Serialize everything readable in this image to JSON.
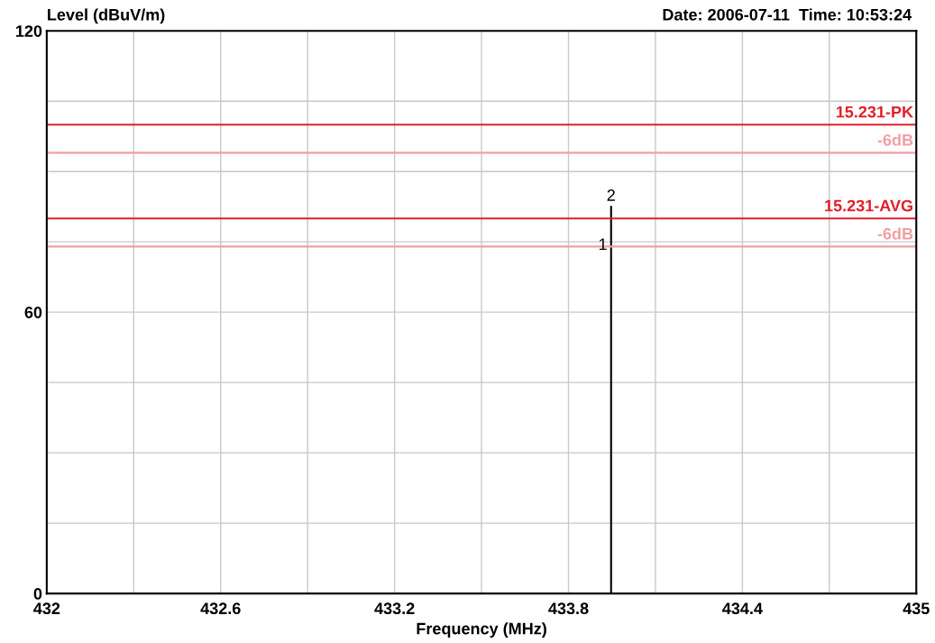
{
  "chart_data": {
    "type": "line",
    "ylabel": "Level (dBuV/m)",
    "xlabel": "Frequency (MHz)",
    "annotations": [
      "Date: 2006-07-11  Time: 10:53:24",
      {
        "text": "2",
        "x": 433.947,
        "y": 82.5
      },
      {
        "text": "1",
        "x": 433.947,
        "y": 74.2
      }
    ],
    "series": [
      {
        "color": "#000000",
        "x": [
          433.947,
          433.947
        ],
        "values": [
          0,
          82.5
        ]
      }
    ],
    "xlim": [
      432,
      435
    ],
    "xticks": [
      432,
      {
        "value": 432.3,
        "label": null
      },
      432.6,
      {
        "value": 432.9,
        "label": null
      },
      433.2,
      {
        "value": 433.5,
        "label": null
      },
      433.8,
      {
        "value": 434.1,
        "label": null
      },
      434.4,
      {
        "value": 434.7,
        "label": null
      },
      435
    ],
    "ylim": [
      0,
      120
    ],
    "yticks": [
      0,
      {
        "value": 15,
        "label": null
      },
      {
        "value": 30,
        "label": null
      },
      {
        "value": 45,
        "label": null
      },
      60,
      {
        "value": 75,
        "label": null
      },
      {
        "value": 90,
        "label": null
      },
      {
        "value": 105,
        "label": null
      },
      120
    ],
    "ref_lines": [
      {
        "axis": "y",
        "value": 100,
        "label": "15.231-PK",
        "color": "#e0202a"
      },
      {
        "axis": "y",
        "value": 94,
        "label": "-6dB",
        "color": "#f0a0a4"
      },
      {
        "axis": "y",
        "value": 80,
        "label": "15.231-AVG",
        "color": "#e0202a"
      },
      {
        "axis": "y",
        "value": 74,
        "label": "-6dB",
        "color": "#f0a0a4"
      }
    ],
    "grid": true,
    "legend": false,
    "marker": "none",
    "line_style": "solid"
  }
}
